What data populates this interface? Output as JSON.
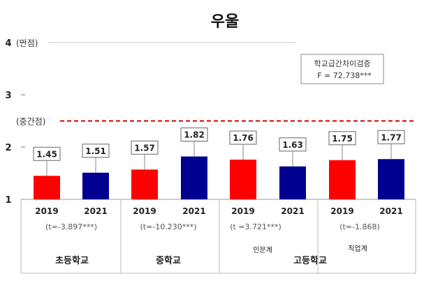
{
  "chart_data": {
    "type": "bar",
    "title": "우울",
    "ylim": [
      1,
      4
    ],
    "yticks": [
      "1",
      "2",
      "3",
      "4"
    ],
    "ymax_annotation": "(만점)",
    "reference_line": {
      "value": 2.5,
      "label": "(중간점)",
      "color": "#cc0000",
      "style": "dashed"
    },
    "stat_box": {
      "line1": "학교급간차이검증",
      "line2": "F = 72.738***"
    },
    "categories": [
      "2019",
      "2021",
      "2019",
      "2021",
      "2019",
      "2021",
      "2019",
      "2021"
    ],
    "values": [
      1.45,
      1.51,
      1.57,
      1.82,
      1.76,
      1.63,
      1.75,
      1.77
    ],
    "value_labels": [
      "1.45",
      "1.51",
      "1.57",
      "1.82",
      "1.76",
      "1.63",
      "1.75",
      "1.77"
    ],
    "bar_colors": [
      "#ff0000",
      "#000090",
      "#ff0000",
      "#000090",
      "#ff0000",
      "#000090",
      "#ff0000",
      "#000090"
    ],
    "t_tests": [
      "(t=-3.897***)",
      "(t=-10.230***)",
      "(t =3.721***)",
      "(t=-1.868)"
    ],
    "subgroup_labels": [
      "인문계",
      "직업계"
    ],
    "group_labels": [
      "초등학교",
      "중학교",
      "고등학교"
    ],
    "grid": false
  }
}
